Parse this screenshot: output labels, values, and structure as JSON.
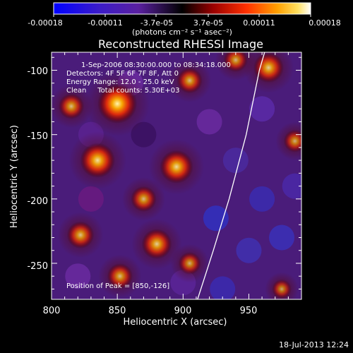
{
  "chart_data": {
    "type": "heatmap",
    "title": "Reconstructed RHESSI Image",
    "xlabel": "Heliocentric X (arcsec)",
    "ylabel": "Heliocentric Y (arcsec)",
    "xlim": [
      800,
      990
    ],
    "ylim": [
      -278,
      -86
    ],
    "x_ticks": [
      "800",
      "850",
      "900",
      "950"
    ],
    "y_ticks": [
      "-100",
      "-150",
      "-200",
      "-250"
    ],
    "colorbar": {
      "ticks": [
        "-0.00018",
        "-0.00011",
        "-3.7e-05",
        "3.7e-05",
        "0.00011",
        "0.00018"
      ],
      "range": [
        -0.00018,
        0.00018
      ],
      "label": "(photons cm⁻² s⁻¹ asec⁻²)"
    },
    "annotations": [
      "1-Sep-2006 08:30:00.000 to 08:34:18.000",
      "Detectors: 4F 5F 6F 7F 8F, Att 0",
      "Energy Range: 12.0 - 25.0 keV",
      "Clean     Total counts: 5.30E+03"
    ],
    "peak_text": "Position of Peak = [850,-126]",
    "peak": [
      850,
      -126
    ],
    "limb_curve": [
      [
        911,
        -278
      ],
      [
        923,
        -240
      ],
      [
        935,
        -200
      ],
      [
        948,
        -150
      ],
      [
        958,
        -100
      ],
      [
        962,
        -86
      ]
    ],
    "hot_spots": [
      {
        "x": 850,
        "y": -126,
        "intensity": 1.0
      },
      {
        "x": 835,
        "y": -170,
        "intensity": 0.85
      },
      {
        "x": 895,
        "y": -175,
        "intensity": 0.8
      },
      {
        "x": 870,
        "y": -200,
        "intensity": 0.55
      },
      {
        "x": 822,
        "y": -228,
        "intensity": 0.6
      },
      {
        "x": 880,
        "y": -235,
        "intensity": 0.7
      },
      {
        "x": 905,
        "y": -108,
        "intensity": 0.55
      },
      {
        "x": 965,
        "y": -98,
        "intensity": 0.7
      },
      {
        "x": 940,
        "y": -92,
        "intensity": 0.5
      },
      {
        "x": 815,
        "y": -128,
        "intensity": 0.55
      },
      {
        "x": 852,
        "y": -260,
        "intensity": 0.55
      },
      {
        "x": 985,
        "y": -155,
        "intensity": 0.45
      },
      {
        "x": 975,
        "y": -270,
        "intensity": 0.35
      },
      {
        "x": 905,
        "y": -250,
        "intensity": 0.45
      }
    ],
    "grid": false
  },
  "footer_date": "18-Jul-2013 12:24"
}
